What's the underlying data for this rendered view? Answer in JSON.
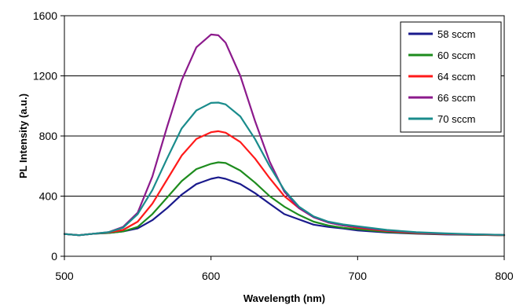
{
  "chart_data": {
    "type": "line",
    "xlabel": "Wavelength  (nm)",
    "ylabel": "PL Intensity  (a.u.)",
    "xlim": [
      500,
      800
    ],
    "ylim": [
      0,
      1600
    ],
    "xticks": [
      "500",
      "600",
      "700",
      "800"
    ],
    "yticks": [
      "0",
      "400",
      "800",
      "1200",
      "1600"
    ],
    "grid": "horizontal",
    "legend_position": "top-right",
    "x": [
      500,
      510,
      520,
      530,
      540,
      550,
      560,
      570,
      580,
      590,
      600,
      605,
      610,
      620,
      630,
      640,
      650,
      660,
      670,
      680,
      690,
      700,
      720,
      740,
      760,
      780,
      800
    ],
    "series": [
      {
        "name": "58 sccm",
        "color": "#1a1a8c",
        "values": [
          148,
          140,
          150,
          155,
          165,
          185,
          240,
          320,
          410,
          480,
          515,
          525,
          515,
          480,
          420,
          350,
          280,
          245,
          210,
          195,
          185,
          172,
          158,
          150,
          145,
          142,
          140
        ]
      },
      {
        "name": "60 sccm",
        "color": "#1e8c1e",
        "values": [
          148,
          140,
          150,
          155,
          165,
          195,
          280,
          390,
          500,
          580,
          615,
          625,
          620,
          570,
          490,
          400,
          330,
          275,
          230,
          205,
          190,
          180,
          162,
          152,
          147,
          143,
          140
        ]
      },
      {
        "name": "64 sccm",
        "color": "#ff1a1a",
        "values": [
          148,
          140,
          150,
          158,
          175,
          230,
          350,
          510,
          670,
          780,
          825,
          832,
          822,
          760,
          650,
          520,
          400,
          320,
          260,
          225,
          205,
          190,
          168,
          155,
          148,
          144,
          140
        ]
      },
      {
        "name": "66 sccm",
        "color": "#8c1a8c",
        "values": [
          148,
          140,
          150,
          160,
          195,
          290,
          530,
          860,
          1170,
          1390,
          1475,
          1470,
          1420,
          1200,
          900,
          630,
          430,
          320,
          260,
          225,
          205,
          195,
          172,
          158,
          150,
          146,
          142
        ]
      },
      {
        "name": "70 sccm",
        "color": "#1a8c8c",
        "values": [
          148,
          140,
          150,
          160,
          190,
          280,
          440,
          650,
          850,
          970,
          1020,
          1022,
          1010,
          930,
          780,
          600,
          440,
          330,
          265,
          230,
          212,
          200,
          175,
          160,
          152,
          146,
          142
        ]
      }
    ]
  }
}
